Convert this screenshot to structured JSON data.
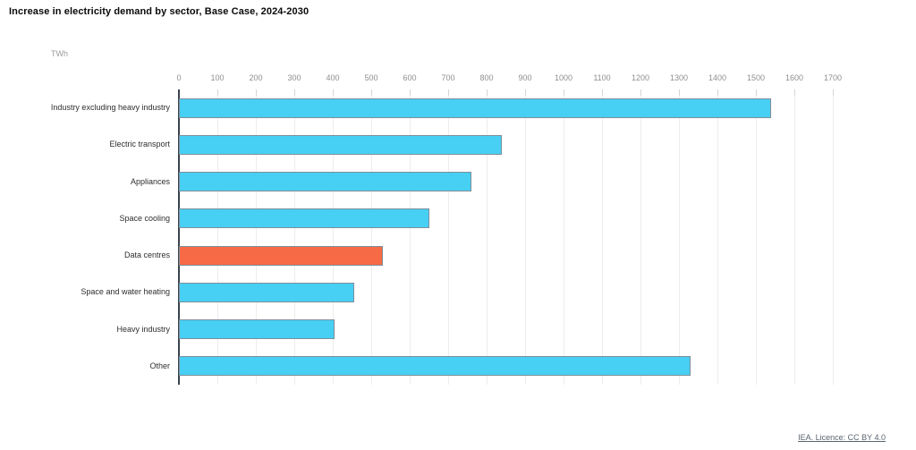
{
  "title": "Increase in electricity demand by sector, Base Case, 2024-2030",
  "unit_label": "TWh",
  "footer": {
    "license_link": "IEA. Licence: CC BY 4.0"
  },
  "colors": {
    "bar_default": "#47CFF4",
    "bar_highlight": "#F76A46",
    "bar_border": "#7E8E99",
    "axis_line": "#3A434C",
    "gridline": "#EDEDEC",
    "tick_text": "#8F8F8F",
    "category_text": "#2E2E2E"
  },
  "chart_data": {
    "type": "bar",
    "orientation": "horizontal",
    "title": "Increase in electricity demand by sector, Base Case, 2024-2030",
    "xlabel": "TWh",
    "ylabel": "",
    "categories": [
      "Industry excluding heavy industry",
      "Electric transport",
      "Appliances",
      "Space cooling",
      "Data centres",
      "Space and water heating",
      "Heavy industry",
      "Other"
    ],
    "values": [
      1540,
      840,
      760,
      650,
      530,
      455,
      405,
      1330
    ],
    "highlight_index": 4,
    "highlight_category": "Data centres",
    "xlim": [
      0,
      1700
    ],
    "x_tick_step": 100,
    "x_tick_labels": [
      "0",
      "100",
      "200",
      "300",
      "400",
      "500",
      "600",
      "700",
      "800",
      "900",
      "1000",
      "1100",
      "1200",
      "1300",
      "1400",
      "1500",
      "1600",
      "1700"
    ],
    "grid": true,
    "legend": false
  }
}
